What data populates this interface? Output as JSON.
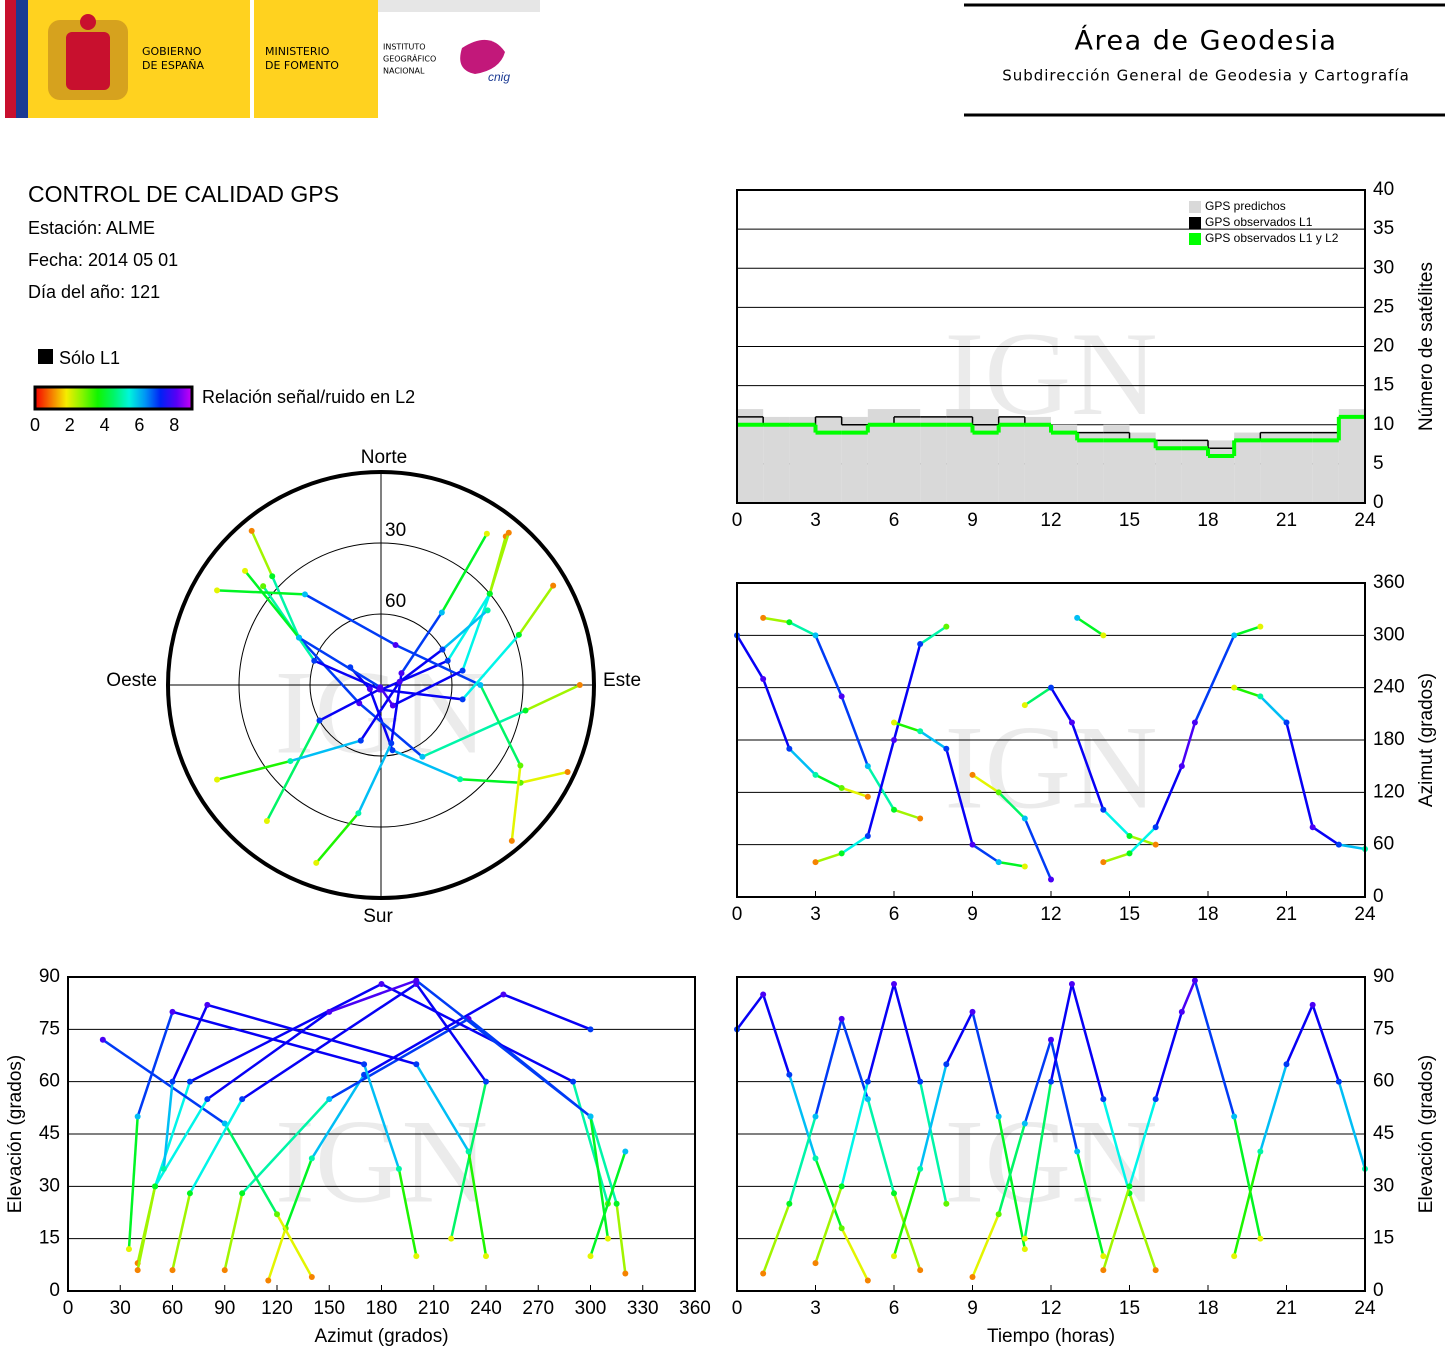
{
  "header": {
    "gov": [
      "GOBIERNO",
      "DE ESPAÑA"
    ],
    "ministry": [
      "MINISTERIO",
      "DE FOMENTO"
    ],
    "institute": [
      "INSTITUTO",
      "GEOGRÁFICO",
      "NACIONAL"
    ],
    "cnig": "cnig",
    "area": "Área de Geodesia",
    "subdirection": "Subdirección General de Geodesia y Cartografía"
  },
  "info": {
    "title": "CONTROL DE CALIDAD GPS",
    "station": "Estación: ALME",
    "date": "Fecha: 2014 05 01",
    "doy": "Día del año: 121",
    "l1_only": "Sólo L1",
    "snr_label": "Relación señal/ruido en L2",
    "snr_ticks": [
      0,
      2,
      4,
      6,
      8
    ]
  },
  "watermark": "IGN",
  "tracks": [
    {
      "time": [
        0,
        1,
        2,
        3,
        4,
        5
      ],
      "elevation": [
        75,
        85,
        62,
        38,
        18,
        3
      ],
      "azimuth": [
        300,
        250,
        170,
        140,
        125,
        115
      ],
      "snr": [
        7,
        8,
        7,
        5,
        3,
        1
      ]
    },
    {
      "time": [
        1,
        2,
        3,
        4,
        5,
        6,
        7
      ],
      "elevation": [
        5,
        25,
        50,
        78,
        55,
        28,
        6
      ],
      "azimuth": [
        320,
        315,
        300,
        230,
        150,
        100,
        90
      ],
      "snr": [
        1,
        4,
        6,
        8,
        6,
        4,
        1
      ]
    },
    {
      "time": [
        3,
        4,
        5,
        6,
        7,
        8
      ],
      "elevation": [
        8,
        30,
        60,
        88,
        60,
        25
      ],
      "azimuth": [
        40,
        50,
        70,
        180,
        290,
        310
      ],
      "snr": [
        1,
        4,
        7,
        8,
        7,
        3
      ]
    },
    {
      "time": [
        6,
        7,
        8,
        9,
        10,
        11
      ],
      "elevation": [
        10,
        35,
        65,
        80,
        50,
        12
      ],
      "azimuth": [
        200,
        190,
        170,
        60,
        40,
        35
      ],
      "snr": [
        2,
        5,
        7,
        8,
        6,
        2
      ]
    },
    {
      "time": [
        9,
        10,
        11,
        12,
        13,
        14
      ],
      "elevation": [
        4,
        22,
        48,
        72,
        40,
        10
      ],
      "azimuth": [
        140,
        120,
        90,
        20,
        320,
        300
      ],
      "snr": [
        1,
        3,
        6,
        8,
        6,
        2
      ]
    },
    {
      "time": [
        11,
        12,
        12.8,
        14,
        15,
        16
      ],
      "elevation": [
        15,
        60,
        88,
        55,
        28,
        6
      ],
      "azimuth": [
        220,
        240,
        200,
        100,
        70,
        60
      ],
      "snr": [
        2,
        7,
        8,
        7,
        4,
        1
      ]
    },
    {
      "time": [
        14,
        15,
        16,
        17,
        17.5,
        19,
        20
      ],
      "elevation": [
        6,
        30,
        55,
        80,
        89,
        50,
        15
      ],
      "azimuth": [
        40,
        50,
        80,
        150,
        200,
        300,
        310
      ],
      "snr": [
        1,
        4,
        7,
        8,
        8,
        6,
        2
      ]
    },
    {
      "time": [
        19,
        20,
        21,
        22,
        23,
        24
      ],
      "elevation": [
        10,
        40,
        65,
        82,
        60,
        35
      ],
      "azimuth": [
        240,
        230,
        200,
        80,
        60,
        55
      ],
      "snr": [
        2,
        5,
        7,
        8,
        7,
        5
      ]
    }
  ],
  "chart_data": [
    {
      "type": "polar",
      "north": "Norte",
      "south": "Sur",
      "east": "Este",
      "west": "Oeste",
      "rings": [
        30,
        60
      ],
      "rlim": [
        90,
        0
      ]
    },
    {
      "type": "step",
      "x": [
        0,
        1,
        2,
        3,
        4,
        5,
        6,
        7,
        8,
        9,
        10,
        11,
        12,
        13,
        14,
        15,
        16,
        17,
        18,
        19,
        20,
        21,
        22,
        23
      ],
      "xlim": [
        0,
        24
      ],
      "xticks": [
        0,
        3,
        6,
        9,
        12,
        15,
        18,
        21,
        24
      ],
      "ylim": [
        0,
        40
      ],
      "yticks": [
        0,
        5,
        10,
        15,
        20,
        25,
        30,
        35,
        40
      ],
      "ylabel": "Número de satélites",
      "grid": true,
      "series": [
        {
          "name": "GPS predichos",
          "color": "#d9d9d9",
          "style": "area",
          "values": [
            12,
            11,
            11,
            11,
            11,
            12,
            12,
            11,
            12,
            12,
            11,
            11,
            10,
            9,
            10,
            9,
            8,
            8,
            8,
            9,
            9,
            9,
            9,
            12
          ]
        },
        {
          "name": "GPS observados L1",
          "color": "#000000",
          "style": "line",
          "values": [
            11,
            10,
            10,
            11,
            10,
            10,
            11,
            11,
            11,
            10,
            11,
            10,
            9,
            9,
            9,
            8,
            8,
            8,
            7,
            8,
            9,
            9,
            9,
            11
          ]
        },
        {
          "name": "GPS observados L1 y L2",
          "color": "#00ff00",
          "style": "line",
          "values": [
            10,
            10,
            10,
            9,
            9,
            10,
            10,
            10,
            10,
            9,
            10,
            10,
            9,
            8,
            8,
            8,
            7,
            7,
            6,
            8,
            8,
            8,
            8,
            11
          ]
        }
      ]
    },
    {
      "type": "track",
      "x_field": "time",
      "y_field": "azimuth",
      "xlim": [
        0,
        24
      ],
      "xticks": [
        0,
        3,
        6,
        9,
        12,
        15,
        18,
        21,
        24
      ],
      "ylim": [
        0,
        360
      ],
      "yticks": [
        0,
        60,
        120,
        180,
        240,
        300,
        360
      ],
      "ylabel": "Azimut (grados)",
      "grid": true
    },
    {
      "type": "track",
      "x_field": "azimuth",
      "y_field": "elevation",
      "xlim": [
        0,
        360
      ],
      "xticks": [
        0,
        30,
        60,
        90,
        120,
        150,
        180,
        210,
        240,
        270,
        300,
        330,
        360
      ],
      "ylim": [
        0,
        90
      ],
      "yticks": [
        0,
        15,
        30,
        45,
        60,
        75,
        90
      ],
      "xlabel": "Azimut (grados)",
      "ylabel": "Elevación (grados)",
      "grid": true
    },
    {
      "type": "track",
      "x_field": "time",
      "y_field": "elevation",
      "xlim": [
        0,
        24
      ],
      "xticks": [
        0,
        3,
        6,
        9,
        12,
        15,
        18,
        21,
        24
      ],
      "ylim": [
        0,
        90
      ],
      "yticks": [
        0,
        15,
        30,
        45,
        60,
        75,
        90
      ],
      "xlabel": "Tiempo (horas)",
      "ylabel": "Elevación (grados)",
      "grid": true
    }
  ]
}
